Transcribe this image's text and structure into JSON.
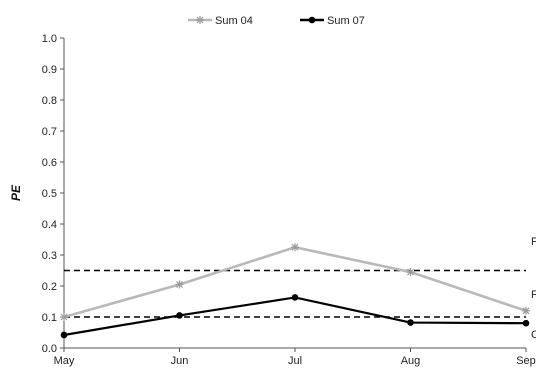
{
  "chart_data": {
    "type": "line",
    "title": "",
    "xlabel": "",
    "ylabel": "PE",
    "categories": [
      "May",
      "Jun",
      "Jul",
      "Aug",
      "Sep"
    ],
    "ylim": [
      0,
      1.0
    ],
    "yticks": [
      "0.0",
      "0.1",
      "0.2",
      "0.3",
      "0.4",
      "0.5",
      "0.6",
      "0.7",
      "0.8",
      "0.9",
      "1.0"
    ],
    "grid": false,
    "legend_position": "top",
    "series": [
      {
        "name": "Sum 04",
        "values": [
          0.1,
          0.205,
          0.325,
          0.245,
          0.12
        ],
        "color": "#b8b8b8",
        "marker": "asterisk"
      },
      {
        "name": "Sum 07",
        "values": [
          0.042,
          0.105,
          0.163,
          0.082,
          0.08
        ],
        "color": "#000000",
        "marker": "circle"
      }
    ],
    "reference_lines": [
      {
        "value": 0.25,
        "style": "dashed",
        "color": "#000000",
        "label": "F"
      },
      {
        "value": 0.1,
        "style": "dashed",
        "color": "#000000",
        "label": "F"
      }
    ],
    "edge_label_bottom": "C"
  }
}
